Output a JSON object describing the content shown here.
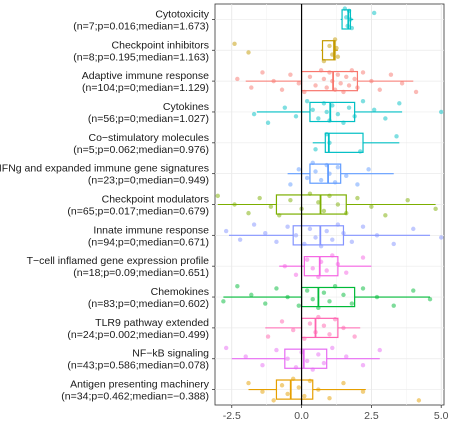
{
  "chart_data": {
    "type": "box",
    "orientation": "horizontal",
    "title": "",
    "xlabel": "",
    "ylabel": "",
    "xlim": [
      -3.1,
      5.1
    ],
    "xticks": [
      -2.5,
      0.0,
      2.5,
      5.0
    ],
    "xtick_labels": [
      "-2.5",
      "0.0",
      "2.5",
      "5.0"
    ],
    "reference_line": 0,
    "grid": true,
    "legend": "none",
    "categories": [
      {
        "name": "Cytotoxicity",
        "stats": "(n=7;p=0.016;median=1.673)",
        "color": "#00BFC4",
        "box": {
          "whisker_low": 1.4,
          "q1": 1.45,
          "median": 1.673,
          "q3": 1.75,
          "whisker_high": 1.85
        },
        "points": [
          1.55,
          1.6,
          1.65,
          1.7,
          1.75,
          1.8,
          2.6
        ]
      },
      {
        "name": "Checkpoint inhibitors",
        "stats": "(n=8;p=0.195;median=1.163)",
        "color": "#C49A00",
        "box": {
          "whisker_low": 0.7,
          "q1": 0.75,
          "median": 1.163,
          "q3": 1.2,
          "whisker_high": 1.3
        },
        "points": [
          -2.4,
          -1.9,
          0.8,
          1.0,
          1.1,
          1.2,
          1.25,
          1.3
        ]
      },
      {
        "name": "Adaptive immune response",
        "stats": "(n=104;p=0;median=1.129)",
        "color": "#F8766D",
        "box": {
          "whisker_low": -2.0,
          "q1": 0.0,
          "median": 1.129,
          "q3": 2.0,
          "whisker_high": 4.0
        },
        "points": [
          -2.3,
          -1.8,
          -1.4,
          -1.0,
          -0.7,
          -0.4,
          -0.1,
          0.1,
          0.3,
          0.5,
          0.7,
          0.8,
          0.9,
          1.0,
          1.1,
          1.2,
          1.3,
          1.4,
          1.5,
          1.6,
          1.7,
          1.8,
          1.9,
          2.0,
          2.2,
          2.5,
          2.8,
          3.2,
          3.6,
          4.1
        ]
      },
      {
        "name": "Cytokines",
        "stats": "(n=56;p=0;median=1.027)",
        "color": "#00BFC4",
        "box": {
          "whisker_low": -1.6,
          "q1": 0.3,
          "median": 1.027,
          "q3": 1.9,
          "whisker_high": 3.6
        },
        "points": [
          -1.7,
          -1.2,
          -0.6,
          -0.2,
          0.2,
          0.4,
          0.6,
          0.8,
          0.9,
          1.0,
          1.1,
          1.3,
          1.5,
          1.7,
          1.9,
          2.2,
          2.6,
          3.0,
          3.5,
          5.0
        ]
      },
      {
        "name": "Co−stimulatory molecules",
        "stats": "(n=5;p=0.062;median=0.976)",
        "color": "#00BFC4",
        "box": {
          "whisker_low": 0.4,
          "q1": 0.85,
          "median": 0.976,
          "q3": 2.2,
          "whisker_high": 3.5
        },
        "points": [
          0.5,
          0.9,
          1.0,
          2.1,
          3.4
        ]
      },
      {
        "name": "IFNg and expanded immune gene signatures",
        "stats": "(n=23;p=0;median=0.949)",
        "color": "#619CFF",
        "box": {
          "whisker_low": -0.5,
          "q1": 0.3,
          "median": 0.949,
          "q3": 1.4,
          "whisker_high": 3.3
        },
        "points": [
          -0.4,
          -0.1,
          0.2,
          0.4,
          0.5,
          0.7,
          0.9,
          1.0,
          1.2,
          1.3,
          1.6,
          2.0,
          2.4
        ]
      },
      {
        "name": "Checkpoint modulators",
        "stats": "(n=65;p=0.017;median=0.679)",
        "color": "#7CAE00",
        "box": {
          "whisker_low": -3.0,
          "q1": -0.9,
          "median": 0.679,
          "q3": 1.6,
          "whisker_high": 4.8
        },
        "points": [
          -3.0,
          -2.4,
          -1.9,
          -1.5,
          -1.1,
          -0.8,
          -0.4,
          0.0,
          0.3,
          0.6,
          0.8,
          1.0,
          1.3,
          1.6,
          2.0,
          2.5,
          3.0,
          3.8,
          4.8
        ]
      },
      {
        "name": "Innate immune response",
        "stats": "(n=94;p=0;median=0.671)",
        "color": "#8494FF",
        "box": {
          "whisker_low": -2.6,
          "q1": -0.3,
          "median": 0.671,
          "q3": 1.5,
          "whisker_high": 4.6
        },
        "points": [
          -2.7,
          -2.2,
          -1.7,
          -1.3,
          -0.9,
          -0.5,
          -0.2,
          0.1,
          0.3,
          0.5,
          0.7,
          0.9,
          1.1,
          1.3,
          1.5,
          1.8,
          2.2,
          2.7,
          3.3,
          4.0,
          5.0
        ]
      },
      {
        "name": "T−cell inflamed gene expression profile",
        "stats": "(n=18;p=0.09;median=0.651)",
        "color": "#F564E3",
        "box": {
          "whisker_low": -0.8,
          "q1": 0.1,
          "median": 0.651,
          "q3": 1.3,
          "whisker_high": 2.5
        },
        "points": [
          -0.6,
          -0.2,
          0.2,
          0.4,
          0.6,
          0.7,
          0.9,
          1.1,
          1.3,
          1.6,
          2.2
        ]
      },
      {
        "name": "Chemokines",
        "stats": "(n=83;p=0;median=0.602)",
        "color": "#00BA38",
        "box": {
          "whisker_low": -2.8,
          "q1": 0.0,
          "median": 0.602,
          "q3": 1.9,
          "whisker_high": 4.6
        },
        "points": [
          -2.8,
          -2.3,
          -1.8,
          -1.3,
          -0.9,
          -0.5,
          -0.1,
          0.2,
          0.4,
          0.6,
          0.8,
          1.0,
          1.2,
          1.5,
          1.8,
          2.2,
          2.7,
          3.3,
          4.0,
          4.6
        ]
      },
      {
        "name": "TLR9 pathway extended",
        "stats": "(n=24;p=0.002;median=0.499)",
        "color": "#FF64B0",
        "box": {
          "whisker_low": -1.3,
          "q1": 0.0,
          "median": 0.499,
          "q3": 1.3,
          "whisker_high": 2.1
        },
        "points": [
          -1.2,
          -0.7,
          -0.3,
          0.1,
          0.3,
          0.5,
          0.6,
          0.8,
          1.0,
          1.2,
          1.5,
          1.9
        ]
      },
      {
        "name": "NF−kB signaling",
        "stats": "(n=43;p=0.586;median=0.078)",
        "color": "#E76BF3",
        "box": {
          "whisker_low": -2.5,
          "q1": -0.6,
          "median": 0.078,
          "q3": 0.9,
          "whisker_high": 2.8
        },
        "points": [
          -2.7,
          -2.0,
          -1.4,
          -0.9,
          -0.5,
          -0.2,
          0.0,
          0.2,
          0.4,
          0.6,
          0.8,
          1.1,
          1.6,
          2.2,
          2.8
        ]
      },
      {
        "name": "Antigen presenting machinery",
        "stats": "(n=34;p=0.462;median=−0.388)",
        "color": "#E69F00",
        "box": {
          "whisker_low": -1.9,
          "q1": -0.9,
          "median": -0.388,
          "q3": 0.4,
          "whisker_high": 2.3
        },
        "points": [
          -1.9,
          -1.4,
          -1.0,
          -0.7,
          -0.5,
          -0.3,
          -0.1,
          0.1,
          0.3,
          0.6,
          1.0,
          1.5,
          2.2,
          4.2
        ]
      }
    ]
  }
}
